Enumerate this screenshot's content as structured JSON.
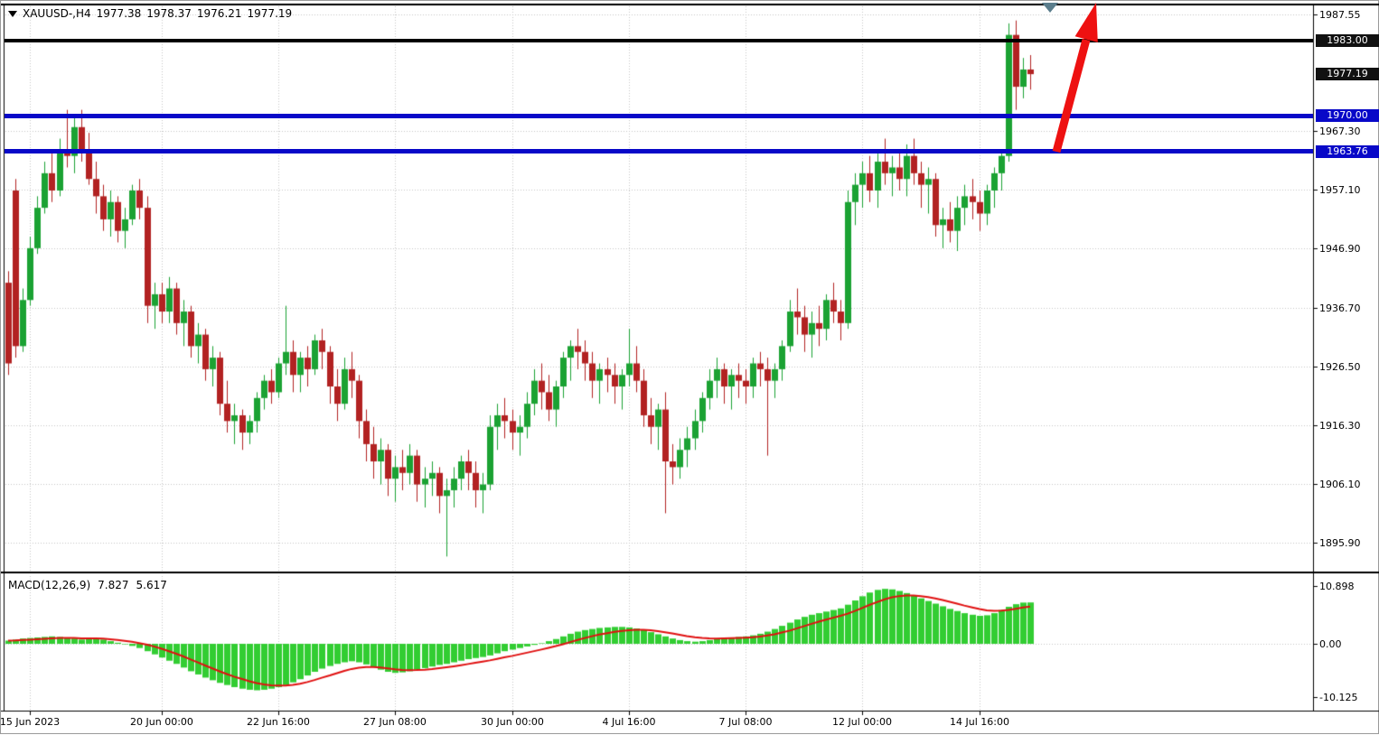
{
  "window": {
    "bg": "#ffffff",
    "border": "#9a9a9a"
  },
  "title_bar": {
    "symbol_period": "XAUUSD-,H4",
    "open": "1977.38",
    "high": "1978.37",
    "low": "1976.21",
    "close": "1977.19"
  },
  "colors": {
    "bull": "#1ba233",
    "bear": "#b22222",
    "macd_hist": "#32cd32",
    "macd_signal": "#e01010",
    "grid": "#c4c4c4",
    "frame": "#000000",
    "badge_black_bg": "#111111",
    "badge_blue_bg": "#0808c8",
    "badge_text": "#ffffff",
    "arrow_red": "#ee1111",
    "marker_gray": "#5a7d8c",
    "text": "#000000"
  },
  "chart_data": {
    "type": "candlestick",
    "symbol": "XAUUSD-",
    "timeframe": "H4",
    "ohlc_current": {
      "open": 1977.38,
      "high": 1978.37,
      "low": 1976.21,
      "close": 1977.19
    },
    "price_axis": {
      "gridlines": [
        {
          "price": 1987.55,
          "label": "1987.55"
        },
        {
          "price": 1967.3,
          "label": "1967.30"
        },
        {
          "price": 1957.1,
          "label": "1957.10"
        },
        {
          "price": 1946.9,
          "label": "1946.90"
        },
        {
          "price": 1936.7,
          "label": "1936.70"
        },
        {
          "price": 1926.5,
          "label": "1926.50"
        },
        {
          "price": 1916.3,
          "label": "1916.30"
        },
        {
          "price": 1906.1,
          "label": "1906.10"
        },
        {
          "price": 1895.9,
          "label": "1895.90"
        }
      ],
      "badges": [
        {
          "price": 1983.0,
          "label": "1983.00",
          "style": "black"
        },
        {
          "price": 1977.19,
          "label": "1977.19",
          "style": "black"
        },
        {
          "price": 1970.0,
          "label": "1970.00",
          "style": "blue"
        },
        {
          "price": 1963.76,
          "label": "1963.76",
          "style": "blue"
        }
      ]
    },
    "time_axis": {
      "labels": [
        {
          "text": "15 Jun 2023",
          "bar": 3
        },
        {
          "text": "20 Jun 00:00",
          "bar": 21
        },
        {
          "text": "22 Jun 16:00",
          "bar": 37
        },
        {
          "text": "27 Jun 08:00",
          "bar": 53
        },
        {
          "text": "30 Jun 00:00",
          "bar": 69
        },
        {
          "text": "4 Jul 16:00",
          "bar": 85
        },
        {
          "text": "7 Jul 08:00",
          "bar": 101
        },
        {
          "text": "12 Jul 00:00",
          "bar": 117
        },
        {
          "text": "14 Jul 16:00",
          "bar": 133
        }
      ]
    },
    "levels": [
      {
        "price": 1983.0,
        "color": "#000000",
        "thickness": 4,
        "name": "resistance-line-1983"
      },
      {
        "price": 1970.0,
        "color": "#0808c8",
        "thickness": 5,
        "name": "support-line-1970"
      },
      {
        "price": 1963.76,
        "color": "#0808c8",
        "thickness": 5,
        "name": "support-line-1963-76"
      }
    ],
    "candles": [
      [
        1941,
        1943,
        1925,
        1927
      ],
      [
        1957,
        1959,
        1928,
        1930
      ],
      [
        1930,
        1940,
        1929,
        1938
      ],
      [
        1938,
        1949,
        1937,
        1947
      ],
      [
        1947,
        1956,
        1946,
        1954
      ],
      [
        1954,
        1962,
        1953,
        1960
      ],
      [
        1960,
        1964,
        1955,
        1957
      ],
      [
        1957,
        1966,
        1956,
        1964
      ],
      [
        1964,
        1971,
        1961,
        1963
      ],
      [
        1963,
        1970,
        1960,
        1968
      ],
      [
        1968,
        1971,
        1962,
        1964
      ],
      [
        1964,
        1967,
        1958,
        1959
      ],
      [
        1959,
        1962,
        1953,
        1956
      ],
      [
        1956,
        1958,
        1950,
        1952
      ],
      [
        1952,
        1957,
        1949,
        1955
      ],
      [
        1955,
        1956,
        1948,
        1950
      ],
      [
        1950,
        1954,
        1947,
        1952
      ],
      [
        1952,
        1958,
        1951,
        1957
      ],
      [
        1957,
        1959,
        1952,
        1954
      ],
      [
        1954,
        1956,
        1934,
        1937
      ],
      [
        1937,
        1941,
        1933,
        1939
      ],
      [
        1939,
        1941,
        1934,
        1936
      ],
      [
        1936,
        1942,
        1934,
        1940
      ],
      [
        1940,
        1941,
        1932,
        1934
      ],
      [
        1934,
        1938,
        1930,
        1936
      ],
      [
        1936,
        1937,
        1928,
        1930
      ],
      [
        1930,
        1934,
        1927,
        1932
      ],
      [
        1932,
        1933,
        1924,
        1926
      ],
      [
        1926,
        1930,
        1923,
        1928
      ],
      [
        1928,
        1929,
        1918,
        1920
      ],
      [
        1920,
        1924,
        1915,
        1917
      ],
      [
        1917,
        1920,
        1913,
        1918
      ],
      [
        1918,
        1919,
        1912,
        1915
      ],
      [
        1915,
        1918,
        1913,
        1917
      ],
      [
        1917,
        1922,
        1915,
        1921
      ],
      [
        1921,
        1925,
        1919,
        1924
      ],
      [
        1924,
        1926,
        1920,
        1922
      ],
      [
        1922,
        1928,
        1921,
        1927
      ],
      [
        1927,
        1937,
        1925,
        1929
      ],
      [
        1929,
        1931,
        1922,
        1925
      ],
      [
        1925,
        1929,
        1922,
        1928
      ],
      [
        1928,
        1930,
        1923,
        1926
      ],
      [
        1926,
        1932,
        1925,
        1931
      ],
      [
        1931,
        1933,
        1926,
        1929
      ],
      [
        1929,
        1930,
        1920,
        1923
      ],
      [
        1923,
        1926,
        1917,
        1920
      ],
      [
        1920,
        1928,
        1919,
        1926
      ],
      [
        1926,
        1929,
        1921,
        1924
      ],
      [
        1924,
        1925,
        1914,
        1917
      ],
      [
        1917,
        1919,
        1910,
        1913
      ],
      [
        1913,
        1916,
        1907,
        1910
      ],
      [
        1910,
        1914,
        1906,
        1912
      ],
      [
        1912,
        1913,
        1904,
        1907
      ],
      [
        1907,
        1911,
        1903,
        1909
      ],
      [
        1909,
        1912,
        1905,
        1908
      ],
      [
        1908,
        1913,
        1906,
        1911
      ],
      [
        1911,
        1912,
        1903,
        1906
      ],
      [
        1906,
        1909,
        1902,
        1907
      ],
      [
        1907,
        1910,
        1904,
        1908
      ],
      [
        1908,
        1909,
        1901,
        1904
      ],
      [
        1904,
        1907,
        1893.5,
        1905
      ],
      [
        1905,
        1909,
        1902,
        1907
      ],
      [
        1907,
        1911,
        1905,
        1910
      ],
      [
        1910,
        1912,
        1905,
        1908
      ],
      [
        1908,
        1910,
        1902,
        1905
      ],
      [
        1905,
        1908,
        1901,
        1906
      ],
      [
        1906,
        1918,
        1905,
        1916
      ],
      [
        1916,
        1920,
        1912,
        1918
      ],
      [
        1918,
        1921,
        1914,
        1917
      ],
      [
        1917,
        1919,
        1912,
        1915
      ],
      [
        1915,
        1918,
        1911,
        1916
      ],
      [
        1916,
        1922,
        1914,
        1920
      ],
      [
        1920,
        1926,
        1918,
        1924
      ],
      [
        1924,
        1927,
        1919,
        1922
      ],
      [
        1922,
        1925,
        1917,
        1919
      ],
      [
        1919,
        1924,
        1916,
        1923
      ],
      [
        1923,
        1929,
        1921,
        1928
      ],
      [
        1928,
        1931,
        1924,
        1930
      ],
      [
        1930,
        1933,
        1926,
        1929
      ],
      [
        1929,
        1931,
        1924,
        1927
      ],
      [
        1927,
        1929,
        1921,
        1924
      ],
      [
        1924,
        1927,
        1920,
        1926
      ],
      [
        1926,
        1928,
        1922,
        1925
      ],
      [
        1925,
        1927,
        1920,
        1923
      ],
      [
        1923,
        1926,
        1919,
        1925
      ],
      [
        1925,
        1933,
        1923,
        1927
      ],
      [
        1927,
        1930,
        1922,
        1924
      ],
      [
        1924,
        1926,
        1916,
        1918
      ],
      [
        1918,
        1921,
        1913,
        1916
      ],
      [
        1916,
        1920,
        1912,
        1919
      ],
      [
        1919,
        1922,
        1901,
        1910
      ],
      [
        1910,
        1913,
        1906,
        1909
      ],
      [
        1909,
        1914,
        1907,
        1912
      ],
      [
        1912,
        1916,
        1909,
        1914
      ],
      [
        1914,
        1919,
        1912,
        1917
      ],
      [
        1917,
        1922,
        1915,
        1921
      ],
      [
        1921,
        1926,
        1919,
        1924
      ],
      [
        1924,
        1928,
        1921,
        1926
      ],
      [
        1926,
        1927,
        1920,
        1923
      ],
      [
        1923,
        1926,
        1919,
        1925
      ],
      [
        1925,
        1927,
        1921,
        1924
      ],
      [
        1924,
        1926,
        1920,
        1923
      ],
      [
        1923,
        1928,
        1921,
        1927
      ],
      [
        1927,
        1929,
        1923,
        1926
      ],
      [
        1926,
        1928,
        1911,
        1924
      ],
      [
        1924,
        1927,
        1921,
        1926
      ],
      [
        1926,
        1931,
        1924,
        1930
      ],
      [
        1930,
        1938,
        1929,
        1936
      ],
      [
        1936,
        1940,
        1932,
        1935
      ],
      [
        1935,
        1937,
        1929,
        1932
      ],
      [
        1932,
        1936,
        1928,
        1934
      ],
      [
        1934,
        1937,
        1930,
        1933
      ],
      [
        1933,
        1939,
        1931,
        1938
      ],
      [
        1938,
        1941,
        1934,
        1936
      ],
      [
        1936,
        1938,
        1931,
        1934
      ],
      [
        1934,
        1957,
        1933,
        1955
      ],
      [
        1955,
        1960,
        1951,
        1958
      ],
      [
        1958,
        1962,
        1954,
        1960
      ],
      [
        1960,
        1963,
        1955,
        1957
      ],
      [
        1957,
        1964,
        1954,
        1962
      ],
      [
        1962,
        1966,
        1958,
        1960
      ],
      [
        1960,
        1963,
        1956,
        1961
      ],
      [
        1961,
        1964,
        1957,
        1959
      ],
      [
        1959,
        1965,
        1956,
        1963
      ],
      [
        1963,
        1966,
        1958,
        1960
      ],
      [
        1960,
        1962,
        1954,
        1958
      ],
      [
        1958,
        1961,
        1953,
        1959
      ],
      [
        1959,
        1960,
        1949,
        1951
      ],
      [
        1951,
        1954,
        1947,
        1952
      ],
      [
        1952,
        1955,
        1948,
        1950
      ],
      [
        1950,
        1956,
        1946.5,
        1954
      ],
      [
        1954,
        1958,
        1951,
        1956
      ],
      [
        1956,
        1959,
        1952,
        1955
      ],
      [
        1955,
        1957,
        1950,
        1953
      ],
      [
        1953,
        1958,
        1951,
        1957
      ],
      [
        1957,
        1961,
        1954,
        1960
      ],
      [
        1960,
        1964,
        1957,
        1963
      ],
      [
        1963,
        1986,
        1962,
        1984
      ],
      [
        1984,
        1986.5,
        1971,
        1975
      ],
      [
        1975,
        1980,
        1973,
        1978
      ],
      [
        1978,
        1980.5,
        1974.5,
        1977.19
      ]
    ],
    "macd": {
      "label": "MACD(12,26,9)",
      "value_main": "7.827",
      "value_signal": "5.617",
      "axis_labels": [
        {
          "value": 10.898,
          "label": "10.898"
        },
        {
          "value": 0,
          "label": "0.00"
        },
        {
          "value": -10.125,
          "label": "-10.125"
        }
      ],
      "values": [
        0.6,
        0.8,
        1.0,
        1.1,
        1.2,
        1.3,
        1.4,
        1.3,
        1.2,
        1.0,
        0.8,
        0.9,
        1.0,
        0.8,
        0.5,
        0.2,
        -0.1,
        -0.4,
        -0.8,
        -1.4,
        -2.0,
        -2.6,
        -3.2,
        -3.8,
        -4.5,
        -5.2,
        -5.8,
        -6.4,
        -6.9,
        -7.4,
        -7.8,
        -8.2,
        -8.5,
        -8.7,
        -8.8,
        -8.7,
        -8.5,
        -8.2,
        -7.8,
        -7.3,
        -6.7,
        -6.0,
        -5.3,
        -4.7,
        -4.2,
        -3.8,
        -3.5,
        -3.3,
        -3.5,
        -3.9,
        -4.4,
        -4.9,
        -5.3,
        -5.5,
        -5.4,
        -5.2,
        -4.9,
        -4.6,
        -4.3,
        -4.0,
        -3.8,
        -3.5,
        -3.2,
        -2.9,
        -2.7,
        -2.5,
        -2.2,
        -1.8,
        -1.4,
        -1.1,
        -0.8,
        -0.5,
        -0.2,
        0.1,
        0.5,
        0.9,
        1.4,
        1.9,
        2.3,
        2.6,
        2.8,
        3.0,
        3.1,
        3.2,
        3.2,
        3.1,
        2.9,
        2.6,
        2.2,
        1.8,
        1.4,
        1.0,
        0.7,
        0.5,
        0.4,
        0.5,
        0.7,
        0.9,
        1.1,
        1.2,
        1.3,
        1.4,
        1.6,
        1.9,
        2.3,
        2.8,
        3.4,
        4.0,
        4.6,
        5.1,
        5.5,
        5.8,
        6.1,
        6.4,
        6.7,
        7.4,
        8.2,
        9.0,
        9.7,
        10.2,
        10.4,
        10.3,
        10.0,
        9.6,
        9.1,
        8.6,
        8.1,
        7.6,
        7.1,
        6.6,
        6.2,
        5.8,
        5.5,
        5.3,
        5.4,
        5.8,
        6.4,
        7.0,
        7.5,
        7.8,
        7.827
      ]
    },
    "annotations": {
      "arrow": {
        "type": "up-arrow",
        "color": "#ee1111"
      },
      "top_marker": {
        "type": "down-triangle",
        "color": "#5a7d8c"
      }
    }
  }
}
